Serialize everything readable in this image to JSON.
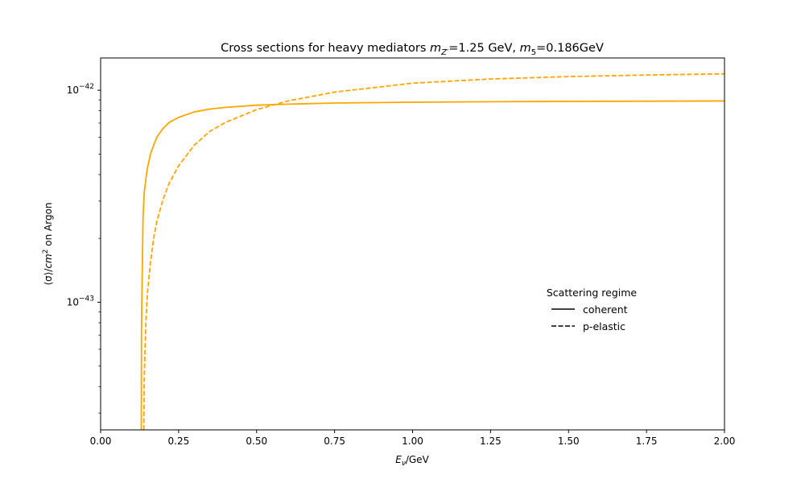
{
  "chart_data": {
    "type": "line",
    "title": {
      "prefix": "Cross sections for heavy mediators ",
      "m1_sym": "m",
      "m1_sub": "Z′",
      "m1_val": "=1.25 GeV, ",
      "m2_sym": "m",
      "m2_sub": "5",
      "m2_val": "=0.186GeV"
    },
    "xlabel": {
      "sym": "E",
      "sub": "ν",
      "unit": "/GeV"
    },
    "ylabel": {
      "pre": "⟨σ⟩/",
      "sym": "cm",
      "sup": "2",
      "post": " on Argon"
    },
    "xlim": [
      0,
      2
    ],
    "ylim": [
      2.5e-44,
      1.42e-42
    ],
    "yscale": "log",
    "xticks": [
      {
        "value": 0,
        "label": "0.00"
      },
      {
        "value": 0.25,
        "label": "0.25"
      },
      {
        "value": 0.5,
        "label": "0.50"
      },
      {
        "value": 0.75,
        "label": "0.75"
      },
      {
        "value": 1.0,
        "label": "1.00"
      },
      {
        "value": 1.25,
        "label": "1.25"
      },
      {
        "value": 1.5,
        "label": "1.50"
      },
      {
        "value": 1.75,
        "label": "1.75"
      },
      {
        "value": 2.0,
        "label": "2.00"
      }
    ],
    "yticks_major": [
      {
        "value": 1e-43,
        "base": "10",
        "exp": "−43"
      },
      {
        "value": 1e-42,
        "base": "10",
        "exp": "−42"
      }
    ],
    "yticks_minor": [
      3e-44,
      4e-44,
      5e-44,
      6e-44,
      7e-44,
      8e-44,
      9e-44,
      2e-43,
      3e-43,
      4e-43,
      5e-43,
      6e-43,
      7e-43,
      8e-43,
      9e-43
    ],
    "grid": false,
    "legend": {
      "title": "Scattering regime",
      "placement": "center-right",
      "entries": [
        {
          "label": "coherent",
          "style": "solid"
        },
        {
          "label": "p-elastic",
          "style": "dashed"
        }
      ]
    },
    "series": [
      {
        "style": "solid",
        "color": "#ffa500",
        "x": [
          0.1305,
          0.131,
          0.132,
          0.134,
          0.136,
          0.138,
          0.14,
          0.145,
          0.15,
          0.16,
          0.17,
          0.18,
          0.2,
          0.22,
          0.25,
          0.3,
          0.35,
          0.4,
          0.5,
          0.6,
          0.75,
          1.0,
          1.25,
          1.5,
          1.75,
          2.0
        ],
        "y": [
          2.5e-44,
          7e-44,
          1e-43,
          1.6e-43,
          2.5e-43,
          2.9e-43,
          3.3e-43,
          3.8e-43,
          4.3e-43,
          5e-43,
          5.5e-43,
          6e-43,
          6.6e-43,
          7.05e-43,
          7.45e-43,
          7.9e-43,
          8.15e-43,
          8.3e-43,
          8.5e-43,
          8.6e-43,
          8.7e-43,
          8.78e-43,
          8.83e-43,
          8.86e-43,
          8.88e-43,
          8.9e-43
        ]
      },
      {
        "style": "dashed",
        "color": "#ffa500",
        "x": [
          0.1385,
          0.14,
          0.145,
          0.15,
          0.16,
          0.17,
          0.18,
          0.2,
          0.22,
          0.25,
          0.3,
          0.35,
          0.4,
          0.5,
          0.6,
          0.75,
          1.0,
          1.25,
          1.5,
          1.75,
          2.0
        ],
        "y": [
          2.5e-44,
          4.5e-44,
          8e-44,
          1.1e-43,
          1.55e-43,
          2e-43,
          2.4e-43,
          3.05e-43,
          3.65e-43,
          4.4e-43,
          5.5e-43,
          6.4e-43,
          7.05e-43,
          8.1e-43,
          8.9e-43,
          9.8e-43,
          1.08e-42,
          1.13e-42,
          1.16e-42,
          1.18e-42,
          1.195e-42
        ]
      }
    ]
  }
}
